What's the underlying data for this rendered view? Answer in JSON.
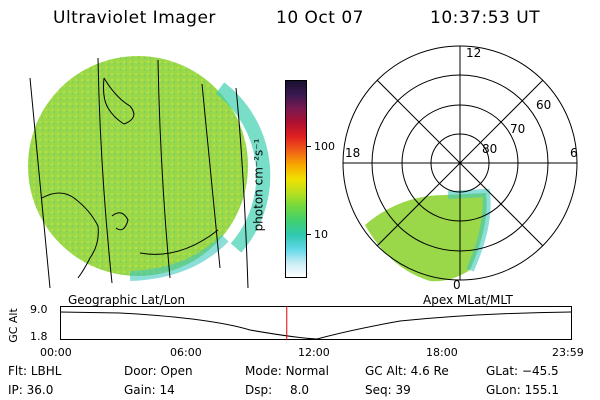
{
  "header": {
    "title": "Ultraviolet Imager",
    "date": "10 Oct 07",
    "time": "10:37:53 UT"
  },
  "colorbar": {
    "unit_label": "photon cm⁻²s⁻¹",
    "ticks": [
      "100",
      "10"
    ],
    "colors_top_to_bottom": [
      "#1a1030",
      "#3a1850",
      "#7a1a50",
      "#b01030",
      "#e02020",
      "#f06018",
      "#f8a800",
      "#f0e000",
      "#b8e020",
      "#70d840",
      "#40d070",
      "#30c8b0",
      "#60d8e8",
      "#c8ecf4",
      "#ffffff"
    ]
  },
  "geo_map": {
    "label": "Geographic Lat/Lon",
    "fill_color": "#9ad84a"
  },
  "polar_map": {
    "label": "Apex MLat/MLT",
    "hour_labels": {
      "top": "12",
      "left": "18",
      "right": "6",
      "bottom": "0"
    },
    "lat_labels": [
      "60",
      "70",
      "80"
    ]
  },
  "timeline": {
    "ylabel": "GC Alt",
    "yticks": [
      "9.0",
      "1.8"
    ],
    "xticks": [
      "00:00",
      "06:00",
      "12:00",
      "18:00",
      "23:59"
    ],
    "current_time_hours": 10.63,
    "marker_color": "#e00000"
  },
  "status": {
    "row1": [
      {
        "label": "Flt:",
        "value": "LBHL"
      },
      {
        "label": "Door:",
        "value": "Open"
      },
      {
        "label": "Mode:",
        "value": "Normal"
      },
      {
        "label": "GC Alt:",
        "value": "4.6 Re"
      },
      {
        "label": "GLat:",
        "value": "−45.5"
      }
    ],
    "row2": [
      {
        "label": "IP:",
        "value": "36.0"
      },
      {
        "label": "Gain:",
        "value": "14"
      },
      {
        "label": "Dsp:",
        "value": "8.0"
      },
      {
        "label": "Seq:",
        "value": "39"
      },
      {
        "label": "GLon:",
        "value": "155.1"
      }
    ]
  }
}
